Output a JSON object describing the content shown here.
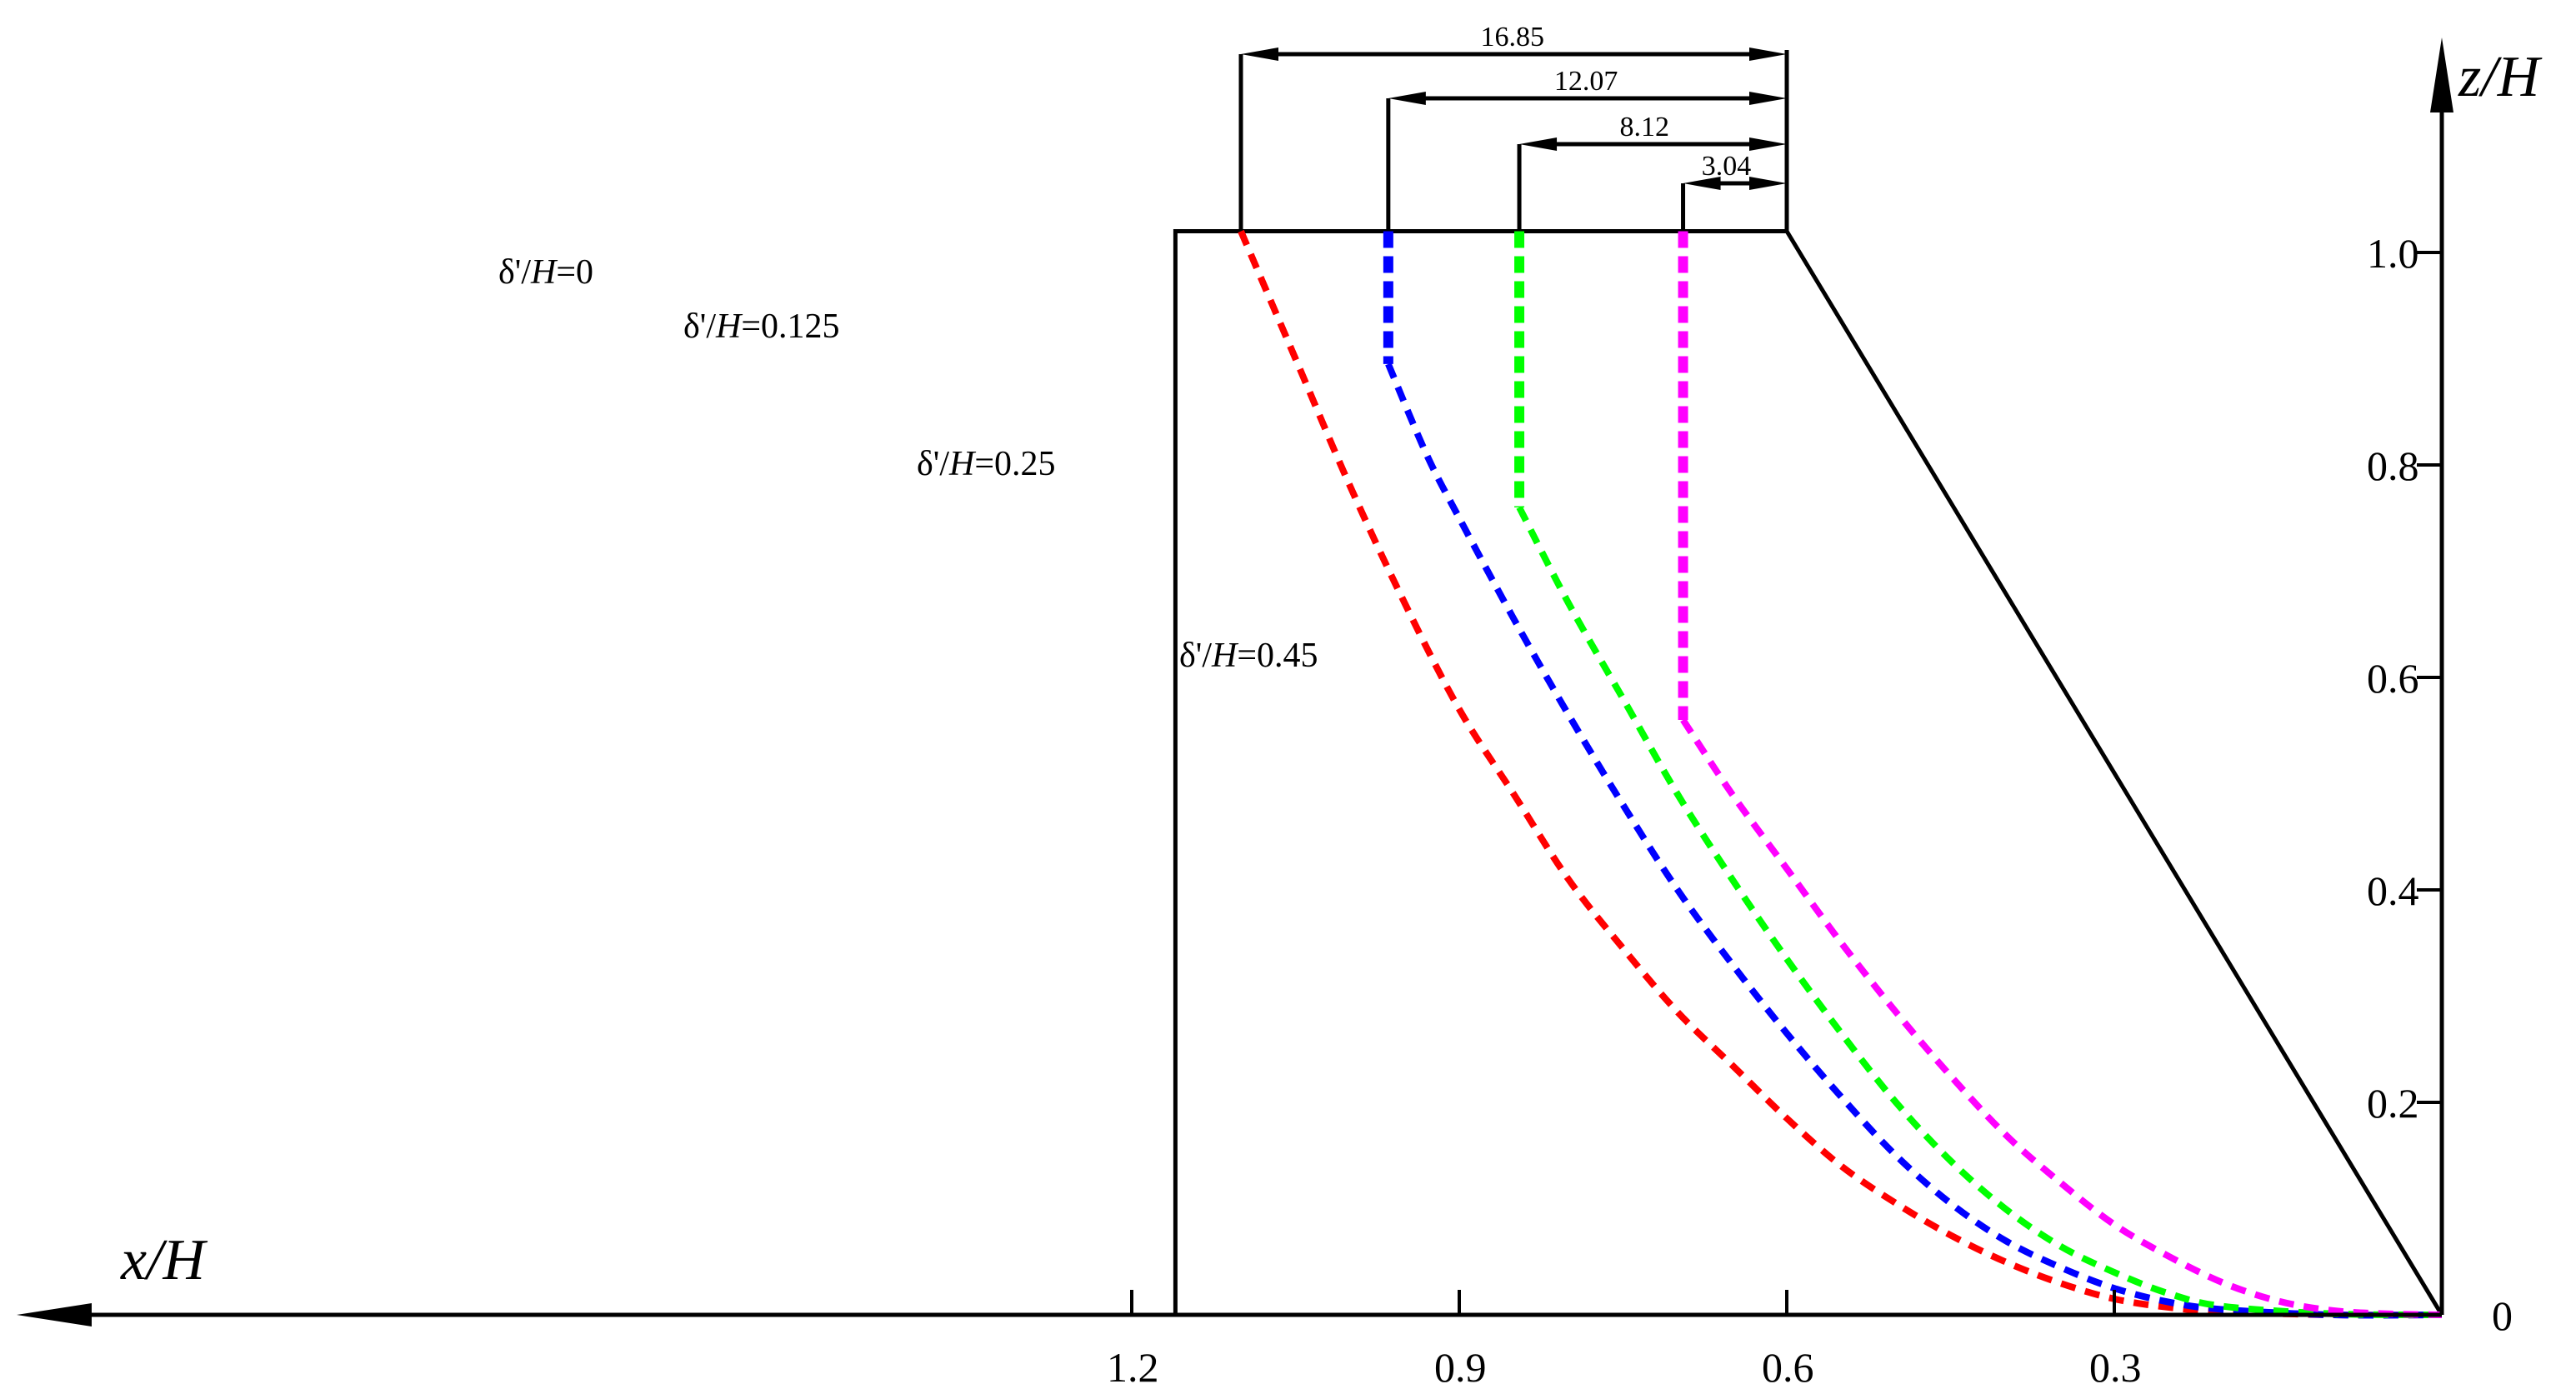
{
  "chart_data": {
    "type": "line",
    "xlabel": "x/H",
    "ylabel": "z/H",
    "x_axis_reversed": true,
    "xlim": [
      0,
      1.3
    ],
    "ylim": [
      0,
      1.05
    ],
    "x_ticks": [
      {
        "value": 1.2,
        "label": "1.2"
      },
      {
        "value": 0.9,
        "label": "0.9"
      },
      {
        "value": 0.6,
        "label": "0.6"
      },
      {
        "value": 0.3,
        "label": "0.3"
      }
    ],
    "y_ticks": [
      {
        "value": 0,
        "label": "0"
      },
      {
        "value": 0.2,
        "label": "0.2"
      },
      {
        "value": 0.4,
        "label": "0.4"
      },
      {
        "value": 0.6,
        "label": "0.6"
      },
      {
        "value": 0.8,
        "label": "0.8"
      },
      {
        "value": 1.0,
        "label": "1.0"
      }
    ],
    "grid": false,
    "outline": {
      "points": [
        [
          1.16,
          0
        ],
        [
          1.16,
          1.02
        ],
        [
          0.6,
          1.02
        ],
        [
          0,
          0
        ]
      ]
    },
    "dimension_lines": [
      {
        "from_x": 1.1,
        "to_x": 0.6,
        "label": "16.85"
      },
      {
        "from_x": 0.965,
        "to_x": 0.6,
        "label": "12.07"
      },
      {
        "from_x": 0.845,
        "to_x": 0.6,
        "label": "8.12"
      },
      {
        "from_x": 0.695,
        "to_x": 0.6,
        "label": "3.04"
      }
    ],
    "series": [
      {
        "label_prefix": "δ'/",
        "label_italic": "H",
        "label_suffix": "=0",
        "color": "#ff0000",
        "points": [
          [
            1.1,
            1.02
          ],
          [
            1.05,
            0.9
          ],
          [
            1.0,
            0.78
          ],
          [
            0.95,
            0.67
          ],
          [
            0.9,
            0.57
          ],
          [
            0.85,
            0.49
          ],
          [
            0.8,
            0.41
          ],
          [
            0.75,
            0.345
          ],
          [
            0.7,
            0.285
          ],
          [
            0.65,
            0.235
          ],
          [
            0.6,
            0.185
          ],
          [
            0.55,
            0.14
          ],
          [
            0.5,
            0.105
          ],
          [
            0.45,
            0.075
          ],
          [
            0.4,
            0.05
          ],
          [
            0.35,
            0.03
          ],
          [
            0.3,
            0.015
          ],
          [
            0.25,
            0.007
          ],
          [
            0.2,
            0.003
          ],
          [
            0.1,
            0.0
          ],
          [
            0.0,
            0.0
          ]
        ]
      },
      {
        "label_prefix": "δ'/",
        "label_italic": "H",
        "label_suffix": "=0.125",
        "color": "#0000ff",
        "points": [
          [
            0.965,
            1.02
          ],
          [
            0.965,
            0.895
          ],
          [
            0.93,
            0.81
          ],
          [
            0.9,
            0.75
          ],
          [
            0.85,
            0.655
          ],
          [
            0.8,
            0.565
          ],
          [
            0.75,
            0.48
          ],
          [
            0.7,
            0.4
          ],
          [
            0.65,
            0.33
          ],
          [
            0.6,
            0.265
          ],
          [
            0.55,
            0.205
          ],
          [
            0.5,
            0.15
          ],
          [
            0.45,
            0.105
          ],
          [
            0.4,
            0.07
          ],
          [
            0.35,
            0.045
          ],
          [
            0.3,
            0.025
          ],
          [
            0.25,
            0.012
          ],
          [
            0.2,
            0.005
          ],
          [
            0.1,
            0.0
          ],
          [
            0.0,
            0.0
          ]
        ]
      },
      {
        "label_prefix": "δ'/",
        "label_italic": "H",
        "label_suffix": "=0.25",
        "color": "#00ff00",
        "points": [
          [
            0.845,
            1.02
          ],
          [
            0.845,
            0.76
          ],
          [
            0.8,
            0.67
          ],
          [
            0.75,
            0.58
          ],
          [
            0.7,
            0.49
          ],
          [
            0.65,
            0.41
          ],
          [
            0.6,
            0.335
          ],
          [
            0.55,
            0.265
          ],
          [
            0.5,
            0.2
          ],
          [
            0.45,
            0.145
          ],
          [
            0.4,
            0.1
          ],
          [
            0.35,
            0.065
          ],
          [
            0.3,
            0.04
          ],
          [
            0.25,
            0.02
          ],
          [
            0.2,
            0.008
          ],
          [
            0.1,
            0.001
          ],
          [
            0.0,
            0.0
          ]
        ]
      },
      {
        "label_prefix": "δ'/",
        "label_italic": "H",
        "label_suffix": "=0.45",
        "color": "#ff00ff",
        "points": [
          [
            0.695,
            1.02
          ],
          [
            0.695,
            0.56
          ],
          [
            0.65,
            0.49
          ],
          [
            0.6,
            0.42
          ],
          [
            0.55,
            0.35
          ],
          [
            0.5,
            0.285
          ],
          [
            0.45,
            0.225
          ],
          [
            0.4,
            0.17
          ],
          [
            0.35,
            0.125
          ],
          [
            0.3,
            0.085
          ],
          [
            0.25,
            0.055
          ],
          [
            0.2,
            0.03
          ],
          [
            0.15,
            0.013
          ],
          [
            0.1,
            0.004
          ],
          [
            0.05,
            0.001
          ],
          [
            0.0,
            0.0
          ]
        ]
      }
    ]
  }
}
